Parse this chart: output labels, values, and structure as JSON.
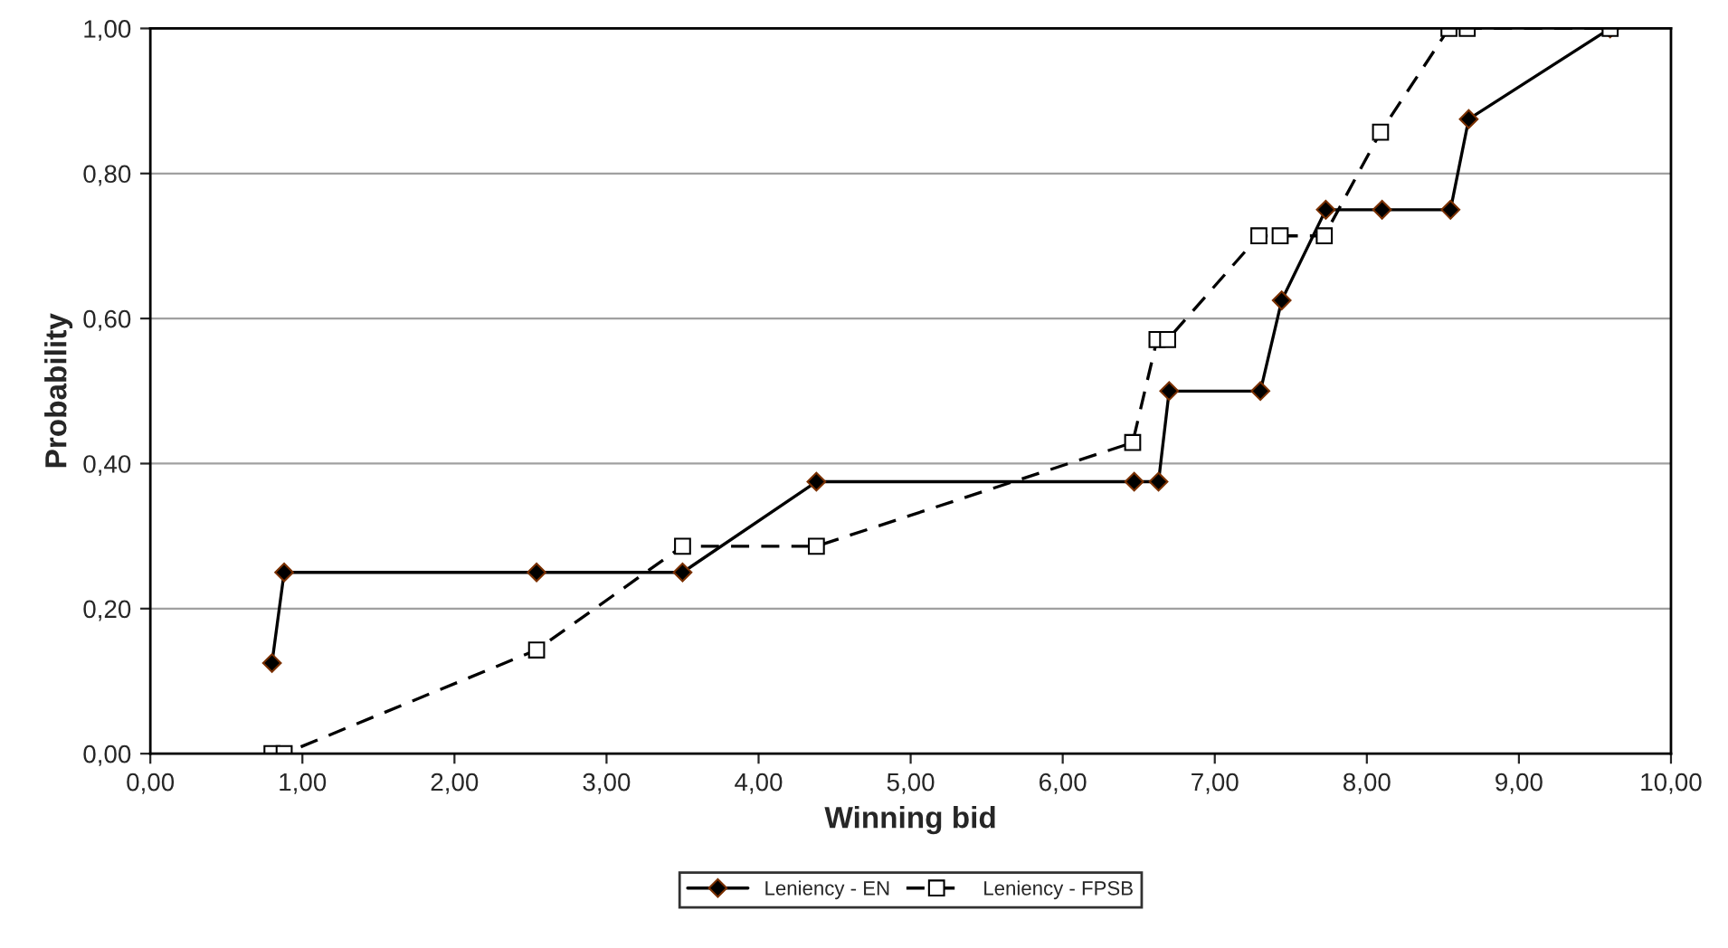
{
  "chart_data": {
    "type": "line",
    "xlabel": "Winning bid",
    "ylabel": "Probability",
    "xlim": [
      0,
      10
    ],
    "ylim": [
      0,
      1
    ],
    "xticks": [
      {
        "value": 0,
        "label": "0,00"
      },
      {
        "value": 1,
        "label": "1,00"
      },
      {
        "value": 2,
        "label": "2,00"
      },
      {
        "value": 3,
        "label": "3,00"
      },
      {
        "value": 4,
        "label": "4,00"
      },
      {
        "value": 5,
        "label": "5,00"
      },
      {
        "value": 6,
        "label": "6,00"
      },
      {
        "value": 7,
        "label": "7,00"
      },
      {
        "value": 8,
        "label": "8,00"
      },
      {
        "value": 9,
        "label": "9,00"
      },
      {
        "value": 10,
        "label": "10,00"
      }
    ],
    "yticks": [
      {
        "value": 0,
        "label": "0,00"
      },
      {
        "value": 0.2,
        "label": "0,20"
      },
      {
        "value": 0.4,
        "label": "0,40"
      },
      {
        "value": 0.6,
        "label": "0,60"
      },
      {
        "value": 0.8,
        "label": "0,80"
      },
      {
        "value": 1,
        "label": "1,00"
      }
    ],
    "grid": "y",
    "legend": "bottom",
    "series": [
      {
        "name": "Leniency - EN",
        "color": "#000000",
        "marker": "diamond",
        "line_style": "solid",
        "x": [
          0.8,
          0.88,
          2.54,
          3.5,
          4.38,
          6.47,
          6.63,
          6.7,
          7.3,
          7.44,
          7.73,
          8.1,
          8.55,
          8.67,
          9.6
        ],
        "values": [
          0.125,
          0.25,
          0.25,
          0.25,
          0.375,
          0.375,
          0.375,
          0.5,
          0.5,
          0.625,
          0.75,
          0.75,
          0.75,
          0.875,
          1.0
        ]
      },
      {
        "name": "Leniency - FPSB",
        "color": "#000000",
        "marker": "square",
        "line_style": "dashed",
        "x": [
          0.8,
          0.88,
          2.54,
          3.5,
          4.38,
          6.46,
          6.62,
          6.69,
          7.29,
          7.43,
          7.72,
          8.09,
          8.54,
          8.66,
          9.6
        ],
        "values": [
          0,
          0,
          0.143,
          0.286,
          0.286,
          0.429,
          0.571,
          0.571,
          0.714,
          0.714,
          0.714,
          0.857,
          1.0,
          1.0,
          1.0
        ]
      }
    ]
  }
}
